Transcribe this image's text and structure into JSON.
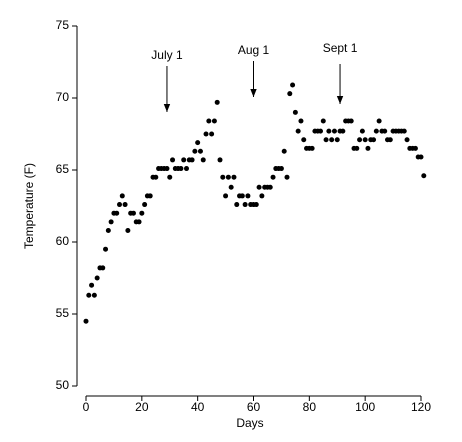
{
  "chart_data": {
    "type": "scatter",
    "x_label": "Days",
    "y_label": "Temperature (F)",
    "xlim": [
      0,
      120
    ],
    "ylim": [
      50,
      75
    ],
    "xticks": [
      0,
      20,
      40,
      60,
      80,
      100,
      120
    ],
    "yticks": [
      50,
      55,
      60,
      65,
      70,
      75
    ],
    "color": "#000000",
    "annotations": [
      {
        "text": "July 1",
        "x": 29
      },
      {
        "text": "Aug 1",
        "x": 60
      },
      {
        "text": "Sept 1",
        "x": 91
      }
    ],
    "x": [
      0,
      1,
      2,
      3,
      4,
      5,
      6,
      7,
      8,
      9,
      10,
      11,
      12,
      13,
      14,
      15,
      16,
      17,
      18,
      19,
      20,
      21,
      22,
      23,
      24,
      25,
      26,
      27,
      28,
      29,
      30,
      31,
      32,
      33,
      34,
      35,
      36,
      37,
      38,
      39,
      40,
      41,
      42,
      43,
      44,
      45,
      46,
      47,
      48,
      49,
      50,
      51,
      52,
      53,
      54,
      55,
      56,
      57,
      58,
      59,
      60,
      61,
      62,
      63,
      64,
      65,
      66,
      67,
      68,
      69,
      70,
      71,
      72,
      73,
      74,
      75,
      76,
      77,
      78,
      79,
      80,
      81,
      82,
      83,
      84,
      85,
      86,
      87,
      88,
      89,
      90,
      91,
      92,
      93,
      94,
      95,
      96,
      97,
      98,
      99,
      100,
      101,
      102,
      103,
      104,
      105,
      106,
      107,
      108,
      109,
      110,
      111,
      112,
      113,
      114,
      115,
      116,
      117,
      118,
      119,
      120,
      121
    ],
    "values": [
      54.5,
      56.3,
      57.0,
      56.3,
      57.5,
      58.2,
      58.2,
      59.5,
      60.8,
      61.4,
      62.0,
      62.0,
      62.6,
      63.2,
      62.6,
      60.8,
      62.0,
      62.0,
      61.4,
      61.4,
      62.0,
      62.6,
      63.2,
      63.2,
      64.5,
      64.5,
      65.1,
      65.1,
      65.1,
      65.1,
      64.5,
      65.7,
      65.1,
      65.1,
      65.1,
      65.7,
      65.1,
      65.7,
      65.7,
      66.3,
      66.9,
      66.3,
      65.7,
      67.5,
      68.4,
      67.5,
      68.4,
      69.7,
      65.7,
      64.5,
      63.2,
      64.5,
      63.8,
      64.5,
      62.6,
      63.2,
      63.2,
      62.6,
      63.2,
      62.6,
      62.6,
      62.6,
      63.8,
      63.2,
      63.8,
      63.8,
      63.8,
      64.5,
      65.1,
      65.1,
      65.1,
      66.3,
      64.5,
      70.3,
      70.9,
      69.0,
      67.7,
      68.4,
      67.1,
      66.5,
      66.5,
      66.5,
      67.7,
      67.7,
      67.7,
      68.4,
      67.1,
      67.7,
      67.1,
      67.7,
      67.1,
      67.7,
      67.7,
      68.4,
      68.4,
      68.4,
      66.5,
      66.5,
      67.1,
      67.7,
      67.1,
      66.5,
      67.1,
      67.1,
      67.7,
      68.4,
      67.7,
      67.7,
      67.1,
      67.1,
      67.7,
      67.7,
      67.7,
      67.7,
      67.7,
      67.1,
      66.5,
      66.5,
      66.5,
      65.9,
      65.9,
      64.6
    ]
  }
}
